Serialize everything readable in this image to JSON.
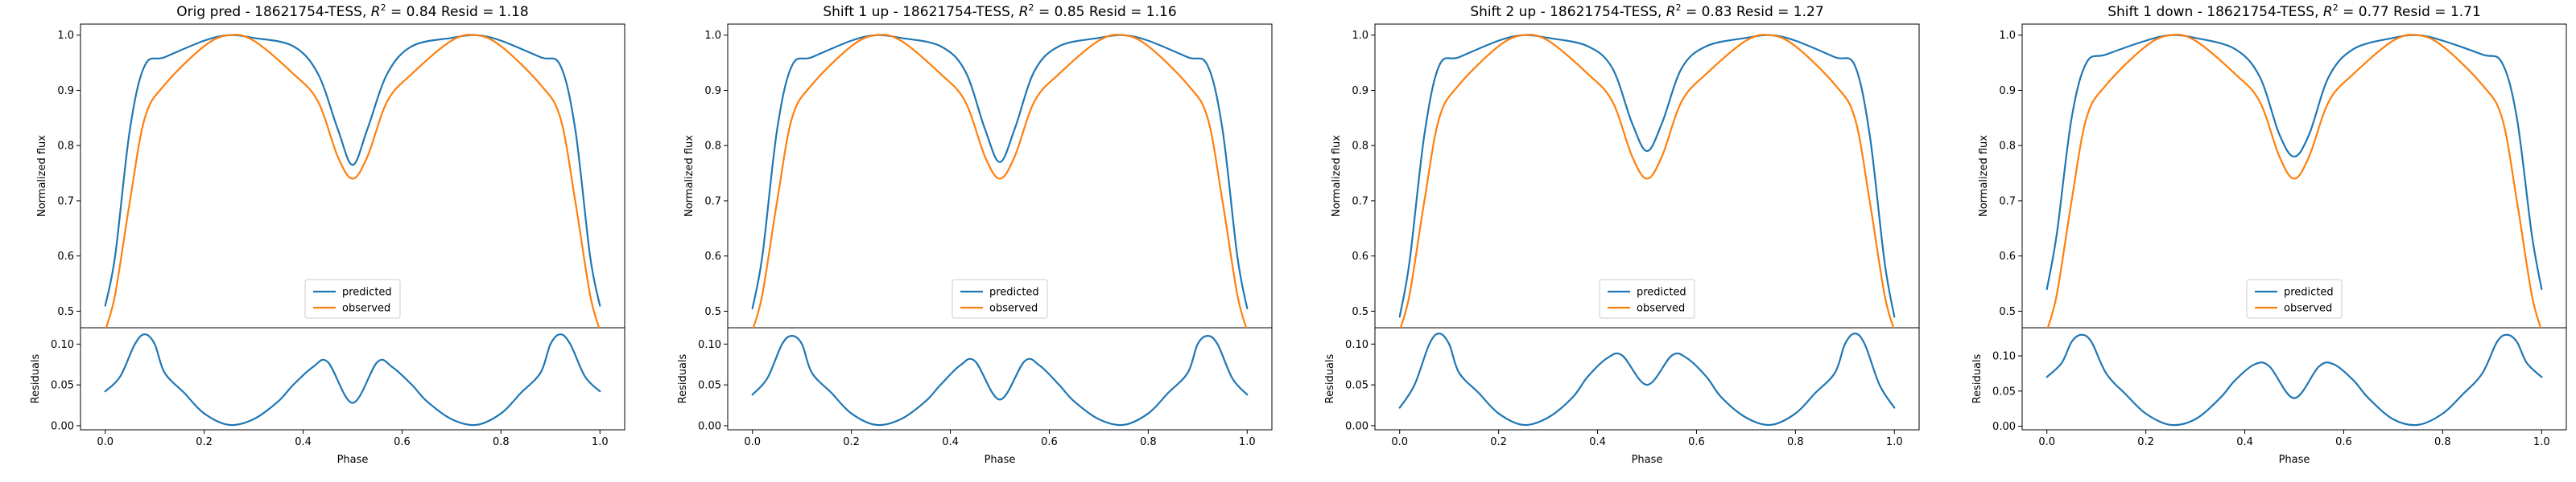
{
  "chart_data": [
    {
      "type": "line",
      "title": "Orig pred - 18621754-TESS, $R^2 = 0.84$ Resid = 1.18",
      "title_parts": {
        "pre": "Orig pred - 18621754-TESS, ",
        "r2_sym": "R",
        "r2_sup": "2",
        "r2_val": " = 0.84",
        "resid": " Resid = 1.18"
      },
      "top_axis": {
        "ylabel": "Normalized flux",
        "ylim": [
          0.47,
          1.02
        ],
        "yticks": [
          0.5,
          0.6,
          0.7,
          0.8,
          0.9,
          1.0
        ],
        "yticklabels": [
          "0.5",
          "0.6",
          "0.7",
          "0.8",
          "0.9",
          "1.0"
        ]
      },
      "bottom_axis": {
        "ylabel": "Residuals",
        "xlabel": "Phase",
        "ylim": [
          -0.005,
          0.12
        ],
        "yticks": [
          0.0,
          0.05,
          0.1
        ],
        "yticklabels": [
          "0.00",
          "0.05",
          "0.10"
        ]
      },
      "xlim": [
        -0.05,
        1.05
      ],
      "xticks": [
        0.0,
        0.2,
        0.4,
        0.6,
        0.8,
        1.0
      ],
      "xticklabels": [
        "0.0",
        "0.2",
        "0.4",
        "0.6",
        "0.8",
        "1.0"
      ],
      "legend": {
        "placement": "lower-center",
        "entries": [
          "predicted",
          "observed"
        ]
      },
      "series": [
        {
          "name": "predicted",
          "color": "#1f77b4",
          "x": [
            0.0,
            0.02,
            0.05,
            0.08,
            0.12,
            0.2,
            0.25,
            0.3,
            0.38,
            0.43,
            0.47,
            0.5,
            0.53,
            0.57,
            0.62,
            0.7,
            0.75,
            0.8,
            0.88,
            0.92,
            0.95,
            0.98,
            1.0
          ],
          "y": [
            0.51,
            0.6,
            0.83,
            0.945,
            0.96,
            0.99,
            1.0,
            0.995,
            0.98,
            0.93,
            0.83,
            0.765,
            0.83,
            0.93,
            0.98,
            0.995,
            1.0,
            0.99,
            0.96,
            0.945,
            0.83,
            0.6,
            0.51
          ]
        },
        {
          "name": "observed",
          "color": "#ff7f0e",
          "x": [
            0.0,
            0.02,
            0.05,
            0.08,
            0.12,
            0.2,
            0.25,
            0.3,
            0.38,
            0.43,
            0.47,
            0.5,
            0.53,
            0.57,
            0.62,
            0.7,
            0.75,
            0.8,
            0.88,
            0.92,
            0.95,
            0.98,
            1.0
          ],
          "y": [
            0.465,
            0.53,
            0.7,
            0.85,
            0.91,
            0.98,
            1.0,
            0.99,
            0.93,
            0.88,
            0.78,
            0.74,
            0.78,
            0.88,
            0.93,
            0.99,
            1.0,
            0.98,
            0.91,
            0.85,
            0.7,
            0.53,
            0.465
          ]
        },
        {
          "name": "residuals",
          "color": "#1f77b4",
          "x": [
            0.0,
            0.03,
            0.06,
            0.08,
            0.1,
            0.12,
            0.16,
            0.2,
            0.25,
            0.3,
            0.35,
            0.38,
            0.42,
            0.45,
            0.5,
            0.55,
            0.58,
            0.62,
            0.65,
            0.7,
            0.75,
            0.8,
            0.84,
            0.88,
            0.9,
            0.92,
            0.94,
            0.97,
            1.0
          ],
          "y": [
            0.042,
            0.06,
            0.1,
            0.112,
            0.1,
            0.065,
            0.04,
            0.015,
            0.001,
            0.008,
            0.03,
            0.05,
            0.072,
            0.078,
            0.028,
            0.078,
            0.072,
            0.05,
            0.03,
            0.008,
            0.001,
            0.015,
            0.04,
            0.065,
            0.1,
            0.112,
            0.1,
            0.06,
            0.042
          ]
        }
      ]
    },
    {
      "type": "line",
      "title": "Shift 1 up - 18621754-TESS, $R^2 = 0.85$ Resid = 1.16",
      "title_parts": {
        "pre": "Shift 1 up - 18621754-TESS, ",
        "r2_sym": "R",
        "r2_sup": "2",
        "r2_val": " = 0.85",
        "resid": " Resid = 1.16"
      },
      "top_axis": {
        "ylabel": "Normalized flux",
        "ylim": [
          0.47,
          1.02
        ],
        "yticks": [
          0.5,
          0.6,
          0.7,
          0.8,
          0.9,
          1.0
        ],
        "yticklabels": [
          "0.5",
          "0.6",
          "0.7",
          "0.8",
          "0.9",
          "1.0"
        ]
      },
      "bottom_axis": {
        "ylabel": "Residuals",
        "xlabel": "Phase",
        "ylim": [
          -0.005,
          0.12
        ],
        "yticks": [
          0.0,
          0.05,
          0.1
        ],
        "yticklabels": [
          "0.00",
          "0.05",
          "0.10"
        ]
      },
      "xlim": [
        -0.05,
        1.05
      ],
      "xticks": [
        0.0,
        0.2,
        0.4,
        0.6,
        0.8,
        1.0
      ],
      "xticklabels": [
        "0.0",
        "0.2",
        "0.4",
        "0.6",
        "0.8",
        "1.0"
      ],
      "legend": {
        "placement": "lower-center",
        "entries": [
          "predicted",
          "observed"
        ]
      },
      "series": [
        {
          "name": "predicted",
          "color": "#1f77b4",
          "x": [
            0.0,
            0.02,
            0.05,
            0.08,
            0.12,
            0.2,
            0.25,
            0.3,
            0.38,
            0.43,
            0.47,
            0.5,
            0.53,
            0.57,
            0.62,
            0.7,
            0.75,
            0.8,
            0.88,
            0.92,
            0.95,
            0.98,
            1.0
          ],
          "y": [
            0.505,
            0.6,
            0.83,
            0.945,
            0.96,
            0.99,
            1.0,
            0.995,
            0.98,
            0.935,
            0.83,
            0.77,
            0.83,
            0.935,
            0.98,
            0.995,
            1.0,
            0.99,
            0.96,
            0.945,
            0.83,
            0.6,
            0.505
          ]
        },
        {
          "name": "observed",
          "color": "#ff7f0e",
          "x": [
            0.0,
            0.02,
            0.05,
            0.08,
            0.12,
            0.2,
            0.25,
            0.3,
            0.38,
            0.43,
            0.47,
            0.5,
            0.53,
            0.57,
            0.62,
            0.7,
            0.75,
            0.8,
            0.88,
            0.92,
            0.95,
            0.98,
            1.0
          ],
          "y": [
            0.465,
            0.53,
            0.7,
            0.85,
            0.91,
            0.98,
            1.0,
            0.99,
            0.93,
            0.88,
            0.78,
            0.74,
            0.78,
            0.88,
            0.93,
            0.99,
            1.0,
            0.98,
            0.91,
            0.85,
            0.7,
            0.53,
            0.465
          ]
        },
        {
          "name": "residuals",
          "color": "#1f77b4",
          "x": [
            0.0,
            0.03,
            0.06,
            0.08,
            0.1,
            0.12,
            0.16,
            0.2,
            0.25,
            0.3,
            0.35,
            0.38,
            0.42,
            0.45,
            0.5,
            0.55,
            0.58,
            0.62,
            0.65,
            0.7,
            0.75,
            0.8,
            0.84,
            0.88,
            0.9,
            0.92,
            0.94,
            0.97,
            1.0
          ],
          "y": [
            0.038,
            0.058,
            0.1,
            0.11,
            0.1,
            0.065,
            0.04,
            0.015,
            0.001,
            0.008,
            0.03,
            0.05,
            0.074,
            0.079,
            0.032,
            0.079,
            0.074,
            0.05,
            0.03,
            0.008,
            0.001,
            0.015,
            0.04,
            0.065,
            0.1,
            0.11,
            0.1,
            0.058,
            0.038
          ]
        }
      ]
    },
    {
      "type": "line",
      "title": "Shift 2 up - 18621754-TESS, $R^2 = 0.83$ Resid = 1.27",
      "title_parts": {
        "pre": "Shift 2 up - 18621754-TESS, ",
        "r2_sym": "R",
        "r2_sup": "2",
        "r2_val": " = 0.83",
        "resid": " Resid = 1.27"
      },
      "top_axis": {
        "ylabel": "Normalized flux",
        "ylim": [
          0.47,
          1.02
        ],
        "yticks": [
          0.5,
          0.6,
          0.7,
          0.8,
          0.9,
          1.0
        ],
        "yticklabels": [
          "0.5",
          "0.6",
          "0.7",
          "0.8",
          "0.9",
          "1.0"
        ]
      },
      "bottom_axis": {
        "ylabel": "Residuals",
        "xlabel": "Phase",
        "ylim": [
          -0.005,
          0.12
        ],
        "yticks": [
          0.0,
          0.05,
          0.1
        ],
        "yticklabels": [
          "0.00",
          "0.05",
          "0.10"
        ]
      },
      "xlim": [
        -0.05,
        1.05
      ],
      "xticks": [
        0.0,
        0.2,
        0.4,
        0.6,
        0.8,
        1.0
      ],
      "xticklabels": [
        "0.0",
        "0.2",
        "0.4",
        "0.6",
        "0.8",
        "1.0"
      ],
      "legend": {
        "placement": "lower-center",
        "entries": [
          "predicted",
          "observed"
        ]
      },
      "series": [
        {
          "name": "predicted",
          "color": "#1f77b4",
          "x": [
            0.0,
            0.02,
            0.05,
            0.08,
            0.12,
            0.2,
            0.25,
            0.3,
            0.38,
            0.43,
            0.47,
            0.5,
            0.53,
            0.57,
            0.62,
            0.7,
            0.75,
            0.8,
            0.88,
            0.92,
            0.95,
            0.98,
            1.0
          ],
          "y": [
            0.49,
            0.59,
            0.82,
            0.945,
            0.96,
            0.99,
            1.0,
            0.995,
            0.98,
            0.94,
            0.84,
            0.79,
            0.84,
            0.94,
            0.98,
            0.995,
            1.0,
            0.99,
            0.96,
            0.945,
            0.82,
            0.59,
            0.49
          ]
        },
        {
          "name": "observed",
          "color": "#ff7f0e",
          "x": [
            0.0,
            0.02,
            0.05,
            0.08,
            0.12,
            0.2,
            0.25,
            0.3,
            0.38,
            0.43,
            0.47,
            0.5,
            0.53,
            0.57,
            0.62,
            0.7,
            0.75,
            0.8,
            0.88,
            0.92,
            0.95,
            0.98,
            1.0
          ],
          "y": [
            0.465,
            0.53,
            0.7,
            0.85,
            0.91,
            0.98,
            1.0,
            0.99,
            0.93,
            0.88,
            0.78,
            0.74,
            0.78,
            0.88,
            0.93,
            0.99,
            1.0,
            0.98,
            0.91,
            0.85,
            0.7,
            0.53,
            0.465
          ]
        },
        {
          "name": "residuals",
          "color": "#1f77b4",
          "x": [
            0.0,
            0.03,
            0.06,
            0.08,
            0.1,
            0.12,
            0.16,
            0.2,
            0.25,
            0.3,
            0.35,
            0.38,
            0.42,
            0.45,
            0.5,
            0.55,
            0.58,
            0.62,
            0.65,
            0.7,
            0.75,
            0.8,
            0.84,
            0.88,
            0.9,
            0.92,
            0.94,
            0.97,
            1.0
          ],
          "y": [
            0.022,
            0.05,
            0.1,
            0.113,
            0.1,
            0.065,
            0.04,
            0.015,
            0.001,
            0.01,
            0.035,
            0.06,
            0.083,
            0.086,
            0.05,
            0.086,
            0.083,
            0.06,
            0.035,
            0.01,
            0.001,
            0.015,
            0.04,
            0.065,
            0.1,
            0.113,
            0.1,
            0.05,
            0.022
          ]
        }
      ]
    },
    {
      "type": "line",
      "title": "Shift 1 down - 18621754-TESS, $R^2 = 0.77$ Resid = 1.71",
      "title_parts": {
        "pre": "Shift 1 down - 18621754-TESS, ",
        "r2_sym": "R",
        "r2_sup": "2",
        "r2_val": " = 0.77",
        "resid": " Resid = 1.71"
      },
      "top_axis": {
        "ylabel": "Normalized flux",
        "ylim": [
          0.47,
          1.02
        ],
        "yticks": [
          0.5,
          0.6,
          0.7,
          0.8,
          0.9,
          1.0
        ],
        "yticklabels": [
          "0.5",
          "0.6",
          "0.7",
          "0.8",
          "0.9",
          "1.0"
        ]
      },
      "bottom_axis": {
        "ylabel": "Residuals",
        "xlabel": "Phase",
        "ylim": [
          -0.005,
          0.14
        ],
        "yticks": [
          0.0,
          0.05,
          0.1
        ],
        "yticklabels": [
          "0.00",
          "0.05",
          "0.10"
        ]
      },
      "xlim": [
        -0.05,
        1.05
      ],
      "xticks": [
        0.0,
        0.2,
        0.4,
        0.6,
        0.8,
        1.0
      ],
      "xticklabels": [
        "0.0",
        "0.2",
        "0.4",
        "0.6",
        "0.8",
        "1.0"
      ],
      "legend": {
        "placement": "lower-center",
        "entries": [
          "predicted",
          "observed"
        ]
      },
      "series": [
        {
          "name": "predicted",
          "color": "#1f77b4",
          "x": [
            0.0,
            0.02,
            0.05,
            0.08,
            0.12,
            0.2,
            0.25,
            0.3,
            0.38,
            0.43,
            0.47,
            0.5,
            0.53,
            0.57,
            0.62,
            0.7,
            0.75,
            0.8,
            0.88,
            0.92,
            0.95,
            0.98,
            1.0
          ],
          "y": [
            0.54,
            0.64,
            0.85,
            0.95,
            0.965,
            0.99,
            1.0,
            0.995,
            0.975,
            0.925,
            0.82,
            0.78,
            0.82,
            0.925,
            0.975,
            0.995,
            1.0,
            0.99,
            0.965,
            0.95,
            0.85,
            0.64,
            0.54
          ]
        },
        {
          "name": "observed",
          "color": "#ff7f0e",
          "x": [
            0.0,
            0.02,
            0.05,
            0.08,
            0.12,
            0.2,
            0.25,
            0.3,
            0.38,
            0.43,
            0.47,
            0.5,
            0.53,
            0.57,
            0.62,
            0.7,
            0.75,
            0.8,
            0.88,
            0.92,
            0.95,
            0.98,
            1.0
          ],
          "y": [
            0.465,
            0.53,
            0.7,
            0.85,
            0.91,
            0.98,
            1.0,
            0.99,
            0.93,
            0.88,
            0.78,
            0.74,
            0.78,
            0.88,
            0.93,
            0.99,
            1.0,
            0.98,
            0.91,
            0.85,
            0.7,
            0.53,
            0.465
          ]
        },
        {
          "name": "residuals",
          "color": "#1f77b4",
          "x": [
            0.0,
            0.03,
            0.05,
            0.07,
            0.09,
            0.12,
            0.16,
            0.2,
            0.25,
            0.3,
            0.35,
            0.38,
            0.42,
            0.45,
            0.5,
            0.55,
            0.58,
            0.62,
            0.65,
            0.7,
            0.75,
            0.8,
            0.84,
            0.88,
            0.91,
            0.93,
            0.95,
            0.97,
            1.0
          ],
          "y": [
            0.07,
            0.09,
            0.12,
            0.13,
            0.12,
            0.075,
            0.045,
            0.018,
            0.002,
            0.01,
            0.04,
            0.065,
            0.088,
            0.085,
            0.04,
            0.085,
            0.088,
            0.065,
            0.04,
            0.01,
            0.002,
            0.018,
            0.045,
            0.075,
            0.12,
            0.13,
            0.12,
            0.09,
            0.07
          ]
        }
      ]
    }
  ]
}
